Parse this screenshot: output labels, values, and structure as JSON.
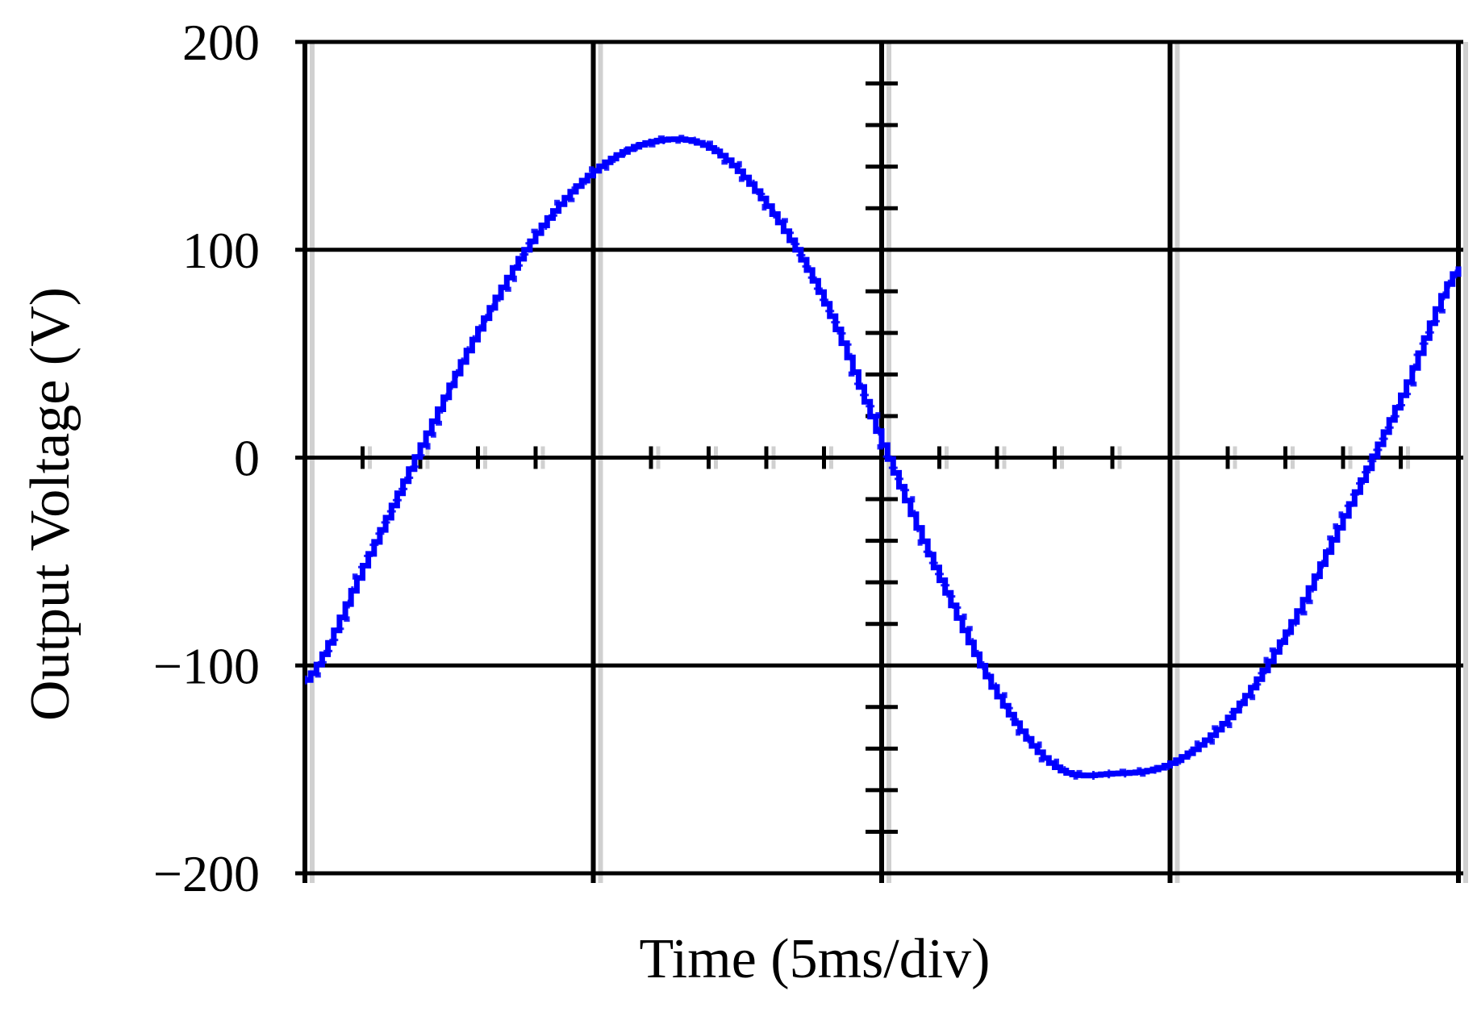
{
  "chart_data": {
    "type": "line",
    "title": "",
    "xlabel": "Time (5ms/div)",
    "ylabel": "Output Voltage (V)",
    "ylim": [
      -200,
      200
    ],
    "xlim": [
      0,
      4
    ],
    "x_unit": "div",
    "yticks": [
      {
        "value": 200,
        "label": "200"
      },
      {
        "value": 100,
        "label": "100"
      },
      {
        "value": 0,
        "label": "0"
      },
      {
        "value": -100,
        "label": "−100"
      },
      {
        "value": -200,
        "label": "−200"
      }
    ],
    "grid": true,
    "legend": "none",
    "series": [
      {
        "color": "#0000ff",
        "x": [
          0,
          0.2,
          0.4,
          0.6,
          0.8,
          1.0,
          1.2,
          1.4,
          1.6,
          1.8,
          2.0,
          2.2,
          2.4,
          2.6,
          2.8,
          3.0,
          3.2,
          3.4,
          3.6,
          3.8,
          4.0
        ],
        "y": [
          -107,
          -52,
          6,
          62,
          108,
          138,
          152,
          149,
          121,
          74,
          6,
          -59,
          -115,
          -149,
          -152,
          -147,
          -125,
          -84,
          -28,
          30,
          92
        ]
      }
    ]
  }
}
